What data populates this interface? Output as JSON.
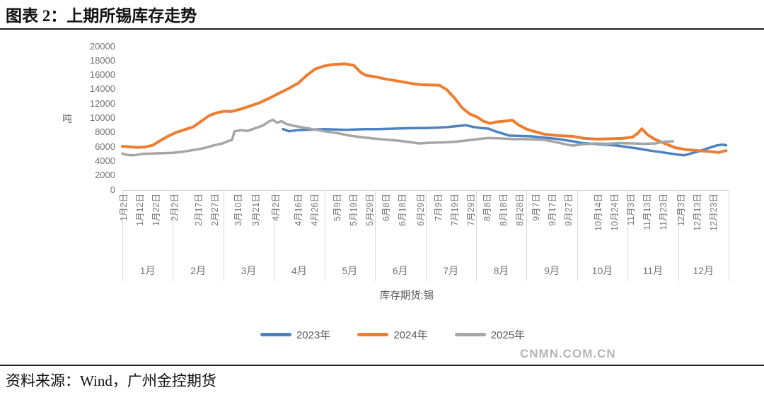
{
  "title": "图表 2：上期所锡库存走势",
  "source": "资料来源：Wind，广州金控期货",
  "watermark": "CNMN.COM.CN",
  "chart_data": {
    "type": "line",
    "title": "上期所锡库存走势",
    "xlabel": "库存期货:锡",
    "ylabel": "吨",
    "ylim": [
      0,
      20000
    ],
    "grid": "off",
    "legend_position": "bottom",
    "yticks": [
      "0",
      "2000",
      "4000",
      "6000",
      "8000",
      "10000",
      "12000",
      "14000",
      "16000",
      "18000",
      "20000"
    ],
    "xticks": [
      "1月2日",
      "1月12日",
      "1月22日",
      "2月2日",
      "2月17日",
      "2月27日",
      "3月10日",
      "3月21日",
      "4月2日",
      "4月16日",
      "4月26日",
      "5月9日",
      "5月19日",
      "5月29日",
      "6月8日",
      "6月18日",
      "6月29日",
      "7月9日",
      "7月19日",
      "7月29日",
      "8月8日",
      "8月18日",
      "8月28日",
      "9月7日",
      "9月17日",
      "9月27日",
      "10月14日",
      "10月24日",
      "11月3日",
      "11月13日",
      "11月23日",
      "12月3日",
      "12月13日",
      "12月23日"
    ],
    "month_labels": [
      "1月",
      "2月",
      "3月",
      "4月",
      "5月",
      "6月",
      "7月",
      "8月",
      "9月",
      "10月",
      "11月",
      "12月"
    ],
    "x_unit_note": "x values are calendar position in months: 1.0 = Jan 1, 12.95 = end of Dec",
    "series": [
      {
        "name": "2023年",
        "color": "#4D82C0",
        "points": [
          [
            4.18,
            8400
          ],
          [
            4.3,
            8100
          ],
          [
            4.45,
            8250
          ],
          [
            4.62,
            8300
          ],
          [
            4.8,
            8350
          ],
          [
            5.0,
            8400
          ],
          [
            5.2,
            8350
          ],
          [
            5.42,
            8300
          ],
          [
            5.62,
            8350
          ],
          [
            5.85,
            8400
          ],
          [
            6.05,
            8400
          ],
          [
            6.28,
            8450
          ],
          [
            6.5,
            8500
          ],
          [
            6.75,
            8550
          ],
          [
            6.98,
            8550
          ],
          [
            7.2,
            8600
          ],
          [
            7.45,
            8700
          ],
          [
            7.62,
            8820
          ],
          [
            7.8,
            8950
          ],
          [
            7.95,
            8700
          ],
          [
            8.1,
            8550
          ],
          [
            8.24,
            8470
          ],
          [
            8.38,
            8100
          ],
          [
            8.52,
            7800
          ],
          [
            8.66,
            7500
          ],
          [
            8.85,
            7450
          ],
          [
            9.08,
            7400
          ],
          [
            9.22,
            7300
          ],
          [
            9.36,
            7200
          ],
          [
            9.5,
            7100
          ],
          [
            9.64,
            7000
          ],
          [
            9.78,
            6850
          ],
          [
            9.92,
            6700
          ],
          [
            10.1,
            6450
          ],
          [
            10.3,
            6350
          ],
          [
            10.55,
            6250
          ],
          [
            10.8,
            6100
          ],
          [
            11.0,
            5900
          ],
          [
            11.2,
            5700
          ],
          [
            11.45,
            5400
          ],
          [
            11.7,
            5150
          ],
          [
            11.9,
            4950
          ],
          [
            12.05,
            4800
          ],
          [
            12.12,
            4750
          ],
          [
            12.25,
            5000
          ],
          [
            12.45,
            5400
          ],
          [
            12.62,
            5800
          ],
          [
            12.78,
            6150
          ],
          [
            12.88,
            6250
          ],
          [
            12.95,
            6150
          ]
        ]
      },
      {
        "name": "2024年",
        "color": "#ED7D31",
        "points": [
          [
            1.0,
            6000
          ],
          [
            1.12,
            5950
          ],
          [
            1.28,
            5850
          ],
          [
            1.45,
            5900
          ],
          [
            1.6,
            6150
          ],
          [
            1.75,
            6800
          ],
          [
            1.9,
            7400
          ],
          [
            2.05,
            7900
          ],
          [
            2.22,
            8300
          ],
          [
            2.4,
            8700
          ],
          [
            2.58,
            9600
          ],
          [
            2.72,
            10300
          ],
          [
            2.88,
            10700
          ],
          [
            3.02,
            10900
          ],
          [
            3.15,
            10850
          ],
          [
            3.32,
            11150
          ],
          [
            3.52,
            11600
          ],
          [
            3.72,
            12100
          ],
          [
            3.92,
            12750
          ],
          [
            4.1,
            13400
          ],
          [
            4.3,
            14100
          ],
          [
            4.48,
            14800
          ],
          [
            4.65,
            15900
          ],
          [
            4.82,
            16800
          ],
          [
            5.0,
            17200
          ],
          [
            5.15,
            17400
          ],
          [
            5.4,
            17500
          ],
          [
            5.58,
            17300
          ],
          [
            5.72,
            16300
          ],
          [
            5.82,
            15900
          ],
          [
            6.0,
            15700
          ],
          [
            6.2,
            15400
          ],
          [
            6.45,
            15100
          ],
          [
            6.7,
            14800
          ],
          [
            6.9,
            14600
          ],
          [
            7.1,
            14550
          ],
          [
            7.28,
            14500
          ],
          [
            7.42,
            13900
          ],
          [
            7.58,
            12700
          ],
          [
            7.72,
            11400
          ],
          [
            7.88,
            10500
          ],
          [
            8.02,
            10100
          ],
          [
            8.15,
            9500
          ],
          [
            8.28,
            9200
          ],
          [
            8.4,
            9400
          ],
          [
            8.55,
            9500
          ],
          [
            8.72,
            9650
          ],
          [
            8.85,
            8960
          ],
          [
            9.0,
            8400
          ],
          [
            9.1,
            8180
          ],
          [
            9.36,
            7680
          ],
          [
            9.64,
            7490
          ],
          [
            9.92,
            7390
          ],
          [
            10.15,
            7100
          ],
          [
            10.4,
            7000
          ],
          [
            10.65,
            7050
          ],
          [
            10.9,
            7100
          ],
          [
            11.1,
            7300
          ],
          [
            11.2,
            7800
          ],
          [
            11.28,
            8450
          ],
          [
            11.4,
            7600
          ],
          [
            11.55,
            6950
          ],
          [
            11.75,
            6350
          ],
          [
            11.95,
            5800
          ],
          [
            12.15,
            5550
          ],
          [
            12.4,
            5400
          ],
          [
            12.6,
            5300
          ],
          [
            12.8,
            5150
          ],
          [
            12.95,
            5400
          ]
        ]
      },
      {
        "name": "2025年",
        "color": "#A5A5A5",
        "points": [
          [
            1.0,
            5000
          ],
          [
            1.1,
            4800
          ],
          [
            1.22,
            4750
          ],
          [
            1.4,
            4950
          ],
          [
            1.6,
            5000
          ],
          [
            1.8,
            5050
          ],
          [
            2.0,
            5100
          ],
          [
            2.2,
            5250
          ],
          [
            2.42,
            5500
          ],
          [
            2.62,
            5750
          ],
          [
            2.82,
            6150
          ],
          [
            2.98,
            6400
          ],
          [
            3.1,
            6750
          ],
          [
            3.17,
            6900
          ],
          [
            3.22,
            8100
          ],
          [
            3.35,
            8250
          ],
          [
            3.48,
            8150
          ],
          [
            3.62,
            8500
          ],
          [
            3.78,
            8900
          ],
          [
            3.9,
            9460
          ],
          [
            3.98,
            9700
          ],
          [
            4.06,
            9300
          ],
          [
            4.15,
            9500
          ],
          [
            4.25,
            9100
          ],
          [
            4.4,
            8850
          ],
          [
            4.6,
            8600
          ],
          [
            4.8,
            8350
          ],
          [
            5.0,
            8100
          ],
          [
            5.25,
            7850
          ],
          [
            5.5,
            7500
          ],
          [
            5.7,
            7300
          ],
          [
            5.95,
            7100
          ],
          [
            6.2,
            6950
          ],
          [
            6.45,
            6800
          ],
          [
            6.68,
            6600
          ],
          [
            6.88,
            6400
          ],
          [
            7.1,
            6500
          ],
          [
            7.35,
            6550
          ],
          [
            7.6,
            6650
          ],
          [
            7.85,
            6850
          ],
          [
            8.1,
            7050
          ],
          [
            8.24,
            7150
          ],
          [
            8.5,
            7100
          ],
          [
            8.75,
            7000
          ],
          [
            9.0,
            7000
          ],
          [
            9.2,
            6950
          ],
          [
            9.36,
            6900
          ],
          [
            9.5,
            6700
          ],
          [
            9.64,
            6500
          ],
          [
            9.8,
            6250
          ],
          [
            9.92,
            6100
          ],
          [
            10.1,
            6300
          ],
          [
            10.35,
            6400
          ],
          [
            10.6,
            6350
          ],
          [
            10.85,
            6450
          ],
          [
            11.1,
            6400
          ],
          [
            11.35,
            6350
          ],
          [
            11.55,
            6400
          ],
          [
            11.72,
            6650
          ],
          [
            11.9,
            6700
          ]
        ]
      }
    ]
  },
  "colors": {
    "blue_2023": "#4D82C0",
    "orange_2024": "#ED7D31",
    "gray_2025": "#A5A5A5",
    "axis_text": "#737373",
    "rule": "#1f1f1f",
    "watermark": "#b5b5b5"
  }
}
